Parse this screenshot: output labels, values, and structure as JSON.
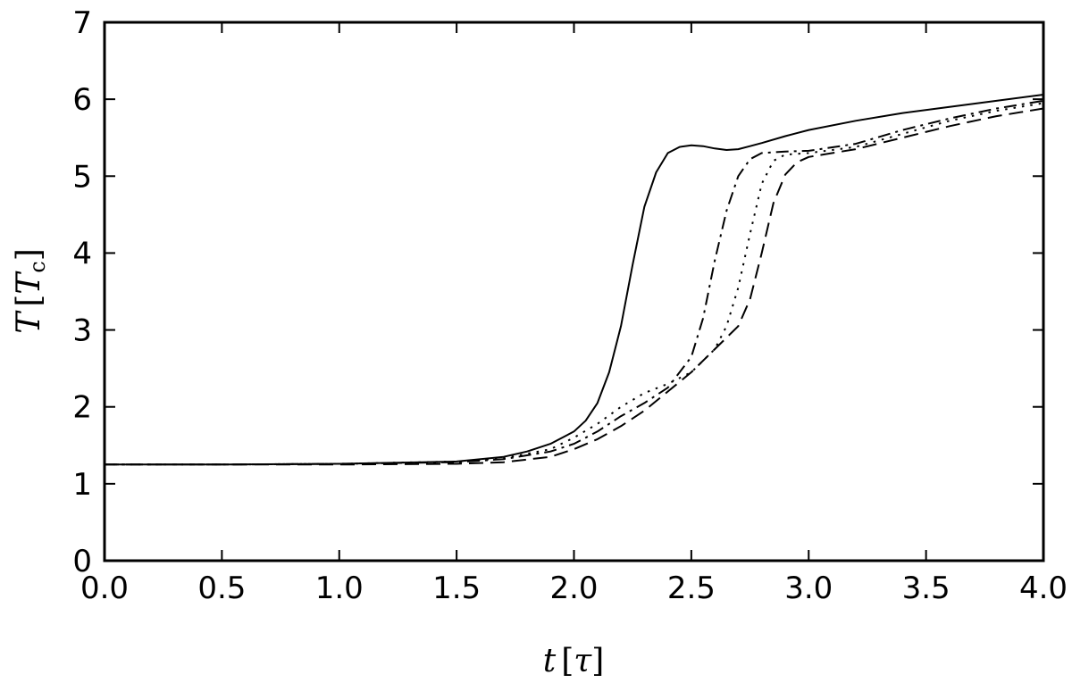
{
  "chart_data": {
    "type": "line",
    "xlabel": "t [τ]",
    "ylabel": "T [Tc]",
    "xlabel_parts": {
      "var": "t",
      "unit": "τ"
    },
    "ylabel_parts": {
      "var": "T",
      "unit": "T",
      "unit_sub": "c"
    },
    "xlim": [
      0.0,
      4.0
    ],
    "ylim": [
      0,
      7
    ],
    "xticks": [
      "0.0",
      "0.5",
      "1.0",
      "1.5",
      "2.0",
      "2.5",
      "3.0",
      "3.5",
      "4.0"
    ],
    "yticks": [
      "0",
      "1",
      "2",
      "3",
      "4",
      "5",
      "6",
      "7"
    ],
    "grid": false,
    "legend": "none",
    "series": [
      {
        "style": "solid",
        "x": [
          0.0,
          0.5,
          1.0,
          1.5,
          1.7,
          1.8,
          1.9,
          2.0,
          2.05,
          2.1,
          2.15,
          2.2,
          2.25,
          2.3,
          2.35,
          2.4,
          2.45,
          2.5,
          2.55,
          2.6,
          2.65,
          2.7,
          2.75,
          2.8,
          2.9,
          3.0,
          3.2,
          3.4,
          3.6,
          3.8,
          4.0
        ],
        "y": [
          1.25,
          1.25,
          1.26,
          1.29,
          1.35,
          1.42,
          1.52,
          1.68,
          1.82,
          2.05,
          2.45,
          3.05,
          3.85,
          4.6,
          5.05,
          5.3,
          5.38,
          5.4,
          5.39,
          5.36,
          5.34,
          5.35,
          5.39,
          5.43,
          5.52,
          5.6,
          5.72,
          5.82,
          5.9,
          5.98,
          6.06
        ]
      },
      {
        "style": "dashdot",
        "x": [
          0.0,
          0.5,
          1.0,
          1.5,
          1.7,
          1.9,
          2.0,
          2.1,
          2.2,
          2.3,
          2.4,
          2.5,
          2.55,
          2.6,
          2.65,
          2.7,
          2.75,
          2.8,
          2.9,
          3.0,
          3.2,
          3.4,
          3.6,
          3.8,
          4.0
        ],
        "y": [
          1.25,
          1.25,
          1.26,
          1.28,
          1.32,
          1.42,
          1.52,
          1.68,
          1.88,
          2.05,
          2.25,
          2.65,
          3.15,
          3.9,
          4.55,
          5.0,
          5.22,
          5.3,
          5.32,
          5.33,
          5.42,
          5.6,
          5.75,
          5.88,
          5.98
        ]
      },
      {
        "style": "dotted",
        "x": [
          0.0,
          0.5,
          1.0,
          1.5,
          1.7,
          1.9,
          2.0,
          2.1,
          2.2,
          2.3,
          2.4,
          2.5,
          2.6,
          2.65,
          2.7,
          2.75,
          2.8,
          2.85,
          2.9,
          3.0,
          3.2,
          3.4,
          3.6,
          3.8,
          4.0
        ],
        "y": [
          1.25,
          1.25,
          1.26,
          1.29,
          1.33,
          1.45,
          1.6,
          1.78,
          2.0,
          2.18,
          2.3,
          2.45,
          2.75,
          3.05,
          3.55,
          4.25,
          4.9,
          5.2,
          5.28,
          5.3,
          5.38,
          5.55,
          5.72,
          5.85,
          5.95
        ]
      },
      {
        "style": "dashed",
        "x": [
          0.0,
          0.5,
          1.0,
          1.5,
          1.7,
          1.9,
          2.0,
          2.1,
          2.2,
          2.3,
          2.4,
          2.5,
          2.6,
          2.7,
          2.75,
          2.8,
          2.85,
          2.9,
          2.95,
          3.0,
          3.2,
          3.4,
          3.6,
          3.8,
          4.0
        ],
        "y": [
          1.25,
          1.25,
          1.25,
          1.26,
          1.28,
          1.35,
          1.45,
          1.58,
          1.75,
          1.95,
          2.2,
          2.45,
          2.75,
          3.05,
          3.4,
          4.0,
          4.65,
          5.02,
          5.18,
          5.25,
          5.35,
          5.5,
          5.65,
          5.78,
          5.88
        ]
      }
    ]
  }
}
